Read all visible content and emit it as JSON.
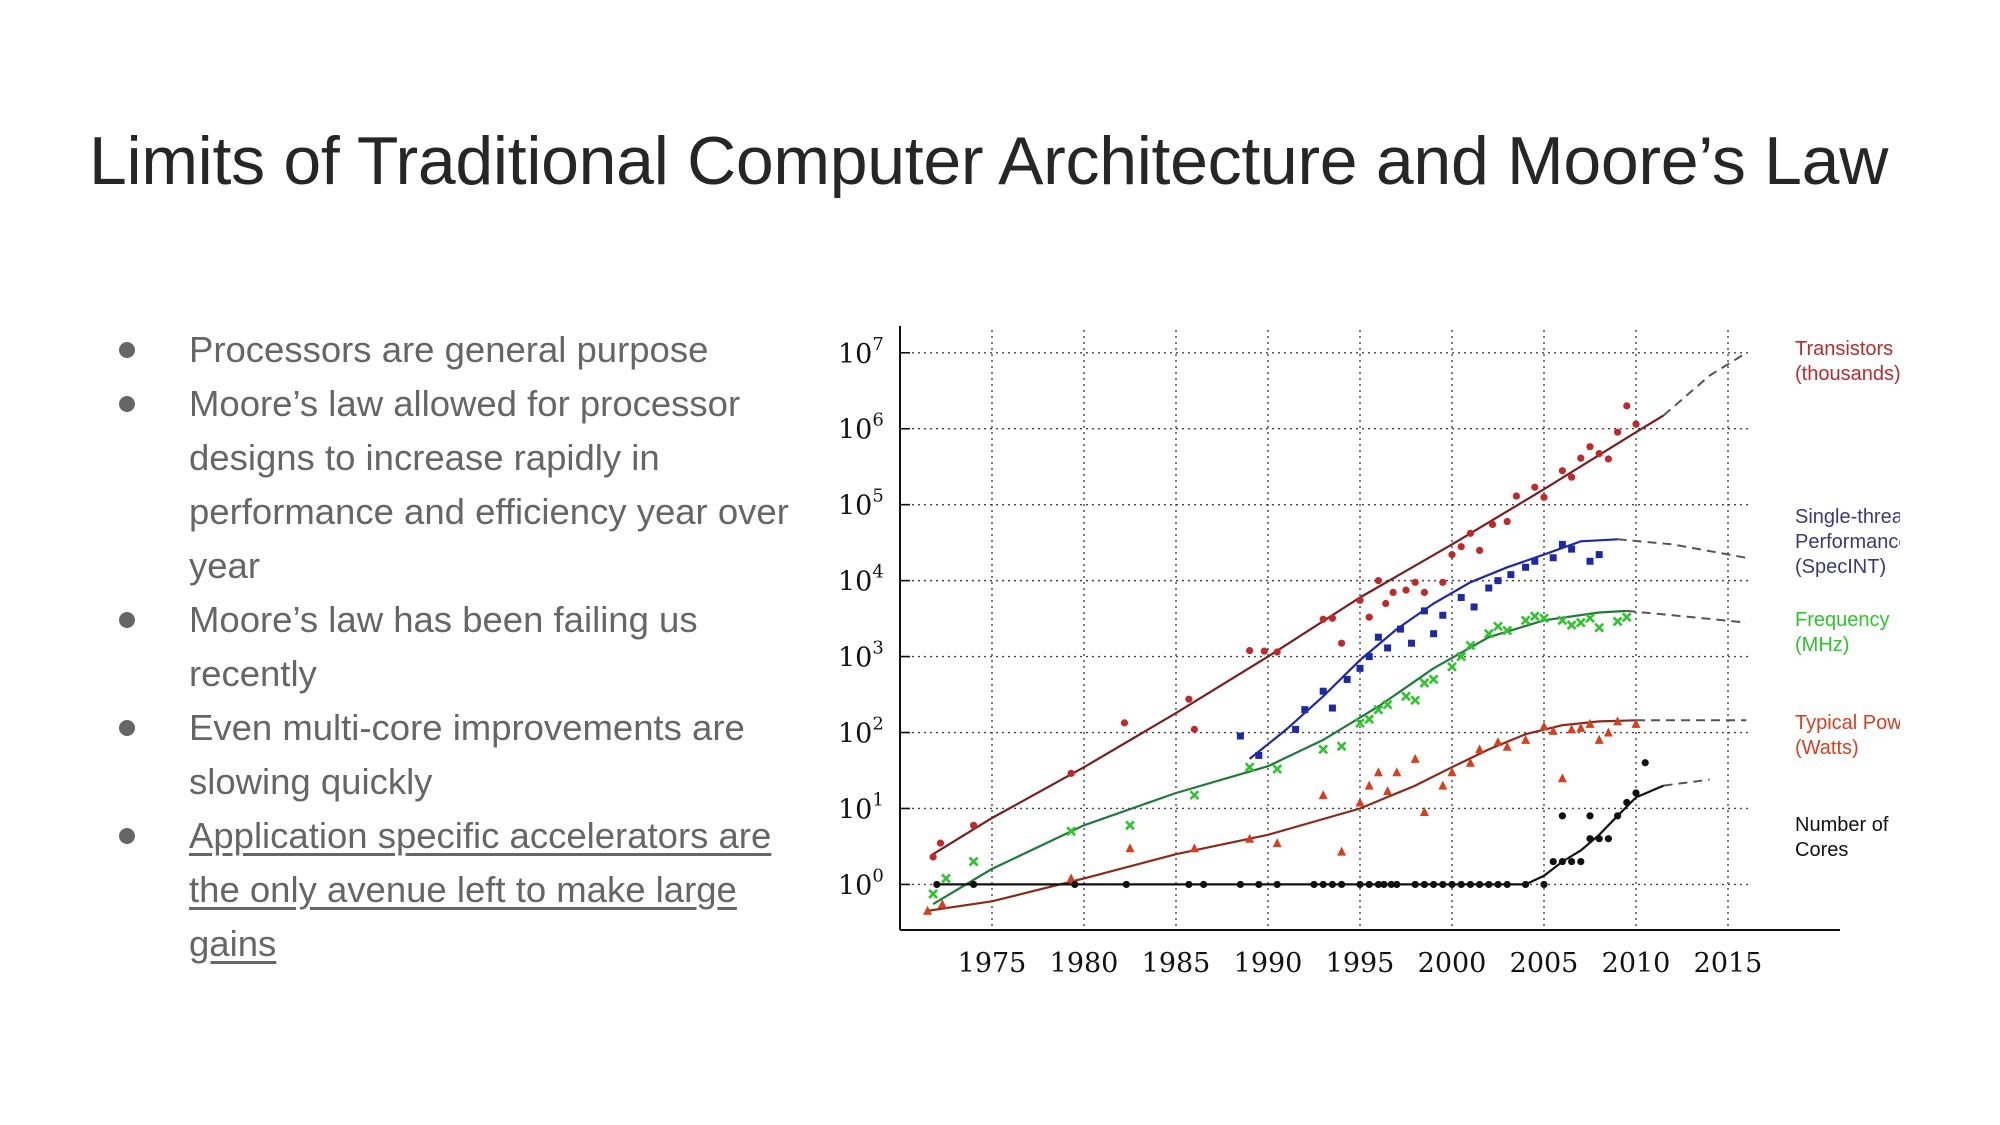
{
  "slide": {
    "title": "Limits of Traditional Computer Architecture and Moore’s Law",
    "bullets": [
      {
        "text": "Processors are general purpose",
        "link": false
      },
      {
        "text": "Moore’s law allowed for processor designs to increase rapidly in performance and efficiency year over year",
        "link": false
      },
      {
        "text": "Moore’s law has been failing us recently",
        "link": false
      },
      {
        "text": "Even multi-core improvements are slowing quickly",
        "link": false
      },
      {
        "text": "Application specific accelerators are the only avenue left to make large gains",
        "link": true
      }
    ]
  },
  "chart_data": {
    "type": "scatter",
    "title": "",
    "xlabel": "",
    "ylabel": "",
    "xlim": [
      1970,
      2020
    ],
    "ylim_log10": [
      -0.6,
      7.3
    ],
    "y_scale": "log",
    "x_ticks": [
      1975,
      1980,
      1985,
      1990,
      1995,
      2000,
      2005,
      2010,
      2015
    ],
    "y_ticks": [
      {
        "base": "10",
        "exp": "0"
      },
      {
        "base": "10",
        "exp": "1"
      },
      {
        "base": "10",
        "exp": "2"
      },
      {
        "base": "10",
        "exp": "3"
      },
      {
        "base": "10",
        "exp": "4"
      },
      {
        "base": "10",
        "exp": "5"
      },
      {
        "base": "10",
        "exp": "6"
      },
      {
        "base": "10",
        "exp": "7"
      }
    ],
    "grid": true,
    "legend_placement": "right",
    "series": [
      {
        "name": "Transistors (thousands)",
        "label_lines": [
          "Transistors",
          "(thousands)"
        ],
        "color": "#c0282a",
        "marker": "dot",
        "points": [
          [
            1971.8,
            2.3
          ],
          [
            1972.2,
            3.5
          ],
          [
            1974,
            6
          ],
          [
            1979.3,
            29
          ],
          [
            1982.2,
            134
          ],
          [
            1985.7,
            275
          ],
          [
            1986,
            110
          ],
          [
            1989,
            1200
          ],
          [
            1989.8,
            1180
          ],
          [
            1990.5,
            1150
          ],
          [
            1993,
            3100
          ],
          [
            1993.5,
            3200
          ],
          [
            1994,
            1500
          ],
          [
            1995,
            5500
          ],
          [
            1995.5,
            3300
          ],
          [
            1996,
            10000
          ],
          [
            1996.4,
            5000
          ],
          [
            1996.8,
            7000
          ],
          [
            1997.5,
            7500
          ],
          [
            1998,
            9500
          ],
          [
            1998.5,
            7000
          ],
          [
            1999.5,
            9500
          ],
          [
            2000,
            22000
          ],
          [
            2000.5,
            28000
          ],
          [
            2001,
            42000
          ],
          [
            2001.5,
            25000
          ],
          [
            2002.2,
            55000
          ],
          [
            2003,
            60000
          ],
          [
            2003.5,
            130000
          ],
          [
            2004.5,
            170000
          ],
          [
            2005,
            125000
          ],
          [
            2006,
            280000
          ],
          [
            2006.5,
            230000
          ],
          [
            2007,
            410000
          ],
          [
            2007.5,
            580000
          ],
          [
            2008,
            470000
          ],
          [
            2008.5,
            400000
          ],
          [
            2009,
            900000
          ],
          [
            2009.5,
            2000000
          ],
          [
            2010,
            1150000
          ]
        ],
        "trend": [
          [
            1971.8,
            2.5
          ],
          [
            1975,
            7.5
          ],
          [
            1980,
            35
          ],
          [
            1985,
            180
          ],
          [
            1990,
            1000
          ],
          [
            1995,
            6000
          ],
          [
            2000,
            30000
          ],
          [
            2005,
            160000
          ],
          [
            2010,
            900000
          ],
          [
            2011.5,
            1500000
          ]
        ],
        "projection": [
          [
            2011.5,
            1500000
          ],
          [
            2014,
            5000000
          ],
          [
            2016,
            10000000
          ]
        ]
      },
      {
        "name": "Single-thread Performance (SpecINT)",
        "label_lines": [
          "Single-thread",
          "Performance",
          "(SpecINT)"
        ],
        "color": "#1c2aa8",
        "marker": "square",
        "points": [
          [
            1988.5,
            90
          ],
          [
            1989.5,
            50
          ],
          [
            1991.5,
            110
          ],
          [
            1992,
            200
          ],
          [
            1993,
            350
          ],
          [
            1993.5,
            210
          ],
          [
            1994.3,
            500
          ],
          [
            1995,
            700
          ],
          [
            1995.5,
            1000
          ],
          [
            1996,
            1800
          ],
          [
            1996.5,
            1300
          ],
          [
            1997.2,
            2300
          ],
          [
            1997.8,
            1500
          ],
          [
            1998.5,
            4000
          ],
          [
            1999,
            2000
          ],
          [
            1999.5,
            3500
          ],
          [
            2000.5,
            6000
          ],
          [
            2001.2,
            4500
          ],
          [
            2002,
            8000
          ],
          [
            2002.5,
            10000
          ],
          [
            2003.2,
            12000
          ],
          [
            2004,
            15000
          ],
          [
            2004.5,
            18000
          ],
          [
            2005.5,
            20000
          ],
          [
            2006,
            30000
          ],
          [
            2006.5,
            26000
          ],
          [
            2007.5,
            18000
          ],
          [
            2008,
            22000
          ]
        ],
        "trend": [
          [
            1989,
            45
          ],
          [
            1991,
            110
          ],
          [
            1993,
            300
          ],
          [
            1995,
            900
          ],
          [
            1997,
            2300
          ],
          [
            1999,
            5000
          ],
          [
            2001,
            9500
          ],
          [
            2003,
            15000
          ],
          [
            2005,
            22000
          ],
          [
            2007,
            33000
          ],
          [
            2009,
            35000
          ]
        ],
        "projection": [
          [
            2009,
            35000
          ],
          [
            2012,
            30000
          ],
          [
            2016,
            20000
          ]
        ]
      },
      {
        "name": "Frequency (MHz)",
        "label_lines": [
          "Frequency",
          "(MHz)"
        ],
        "color": "#2ec42e",
        "marker": "cross",
        "points": [
          [
            1971.8,
            0.75
          ],
          [
            1972.5,
            1.2
          ],
          [
            1974,
            2
          ],
          [
            1979.3,
            5
          ],
          [
            1982.5,
            6
          ],
          [
            1986,
            15
          ],
          [
            1989,
            35
          ],
          [
            1990.5,
            33
          ],
          [
            1993,
            60
          ],
          [
            1994,
            66
          ],
          [
            1995,
            133
          ],
          [
            1995.5,
            150
          ],
          [
            1996,
            200
          ],
          [
            1996.5,
            233
          ],
          [
            1997.5,
            300
          ],
          [
            1998,
            266
          ],
          [
            1998.5,
            450
          ],
          [
            1999,
            500
          ],
          [
            2000,
            733
          ],
          [
            2000.5,
            1000
          ],
          [
            2001,
            1400
          ],
          [
            2002,
            2000
          ],
          [
            2002.5,
            2500
          ],
          [
            2003,
            2200
          ],
          [
            2004,
            3000
          ],
          [
            2004.5,
            3400
          ],
          [
            2005,
            3200
          ],
          [
            2006,
            3000
          ],
          [
            2006.5,
            2600
          ],
          [
            2007,
            2800
          ],
          [
            2007.5,
            3200
          ],
          [
            2008,
            2400
          ],
          [
            2009,
            2900
          ],
          [
            2009.5,
            3300
          ]
        ],
        "trend": [
          [
            1971.8,
            0.55
          ],
          [
            1975,
            1.6
          ],
          [
            1980,
            6
          ],
          [
            1985,
            16
          ],
          [
            1990,
            36
          ],
          [
            1993,
            80
          ],
          [
            1996,
            220
          ],
          [
            1999,
            700
          ],
          [
            2002,
            1800
          ],
          [
            2005,
            3000
          ],
          [
            2008,
            3800
          ],
          [
            2009.5,
            4000
          ]
        ],
        "projection": [
          [
            2009.5,
            4000
          ],
          [
            2012,
            3500
          ],
          [
            2016,
            2800
          ]
        ]
      },
      {
        "name": "Typical Power (Watts)",
        "label_lines": [
          "Typical Power",
          "(Watts)"
        ],
        "color": "#d6401e",
        "marker": "triangle",
        "points": [
          [
            1971.5,
            0.45
          ],
          [
            1972.3,
            0.55
          ],
          [
            1979.3,
            1.2
          ],
          [
            1982.5,
            3
          ],
          [
            1986,
            3
          ],
          [
            1989,
            4
          ],
          [
            1990.5,
            3.5
          ],
          [
            1993,
            15
          ],
          [
            1994,
            2.7
          ],
          [
            1995,
            12
          ],
          [
            1995.5,
            20
          ],
          [
            1996,
            30
          ],
          [
            1996.5,
            17
          ],
          [
            1997,
            30
          ],
          [
            1998,
            45
          ],
          [
            1998.5,
            9
          ],
          [
            1999.5,
            20
          ],
          [
            2000,
            30
          ],
          [
            2001,
            40
          ],
          [
            2001.5,
            60
          ],
          [
            2002.5,
            75
          ],
          [
            2003,
            65
          ],
          [
            2004,
            80
          ],
          [
            2005,
            120
          ],
          [
            2005.5,
            105
          ],
          [
            2006,
            25
          ],
          [
            2006.5,
            110
          ],
          [
            2007,
            115
          ],
          [
            2007.5,
            130
          ],
          [
            2008,
            80
          ],
          [
            2008.5,
            100
          ],
          [
            2009,
            140
          ],
          [
            2010,
            130
          ]
        ],
        "trend": [
          [
            1971.5,
            0.45
          ],
          [
            1975,
            0.6
          ],
          [
            1980,
            1.2
          ],
          [
            1985,
            2.5
          ],
          [
            1990,
            4.5
          ],
          [
            1995,
            10
          ],
          [
            1998,
            20
          ],
          [
            2000,
            35
          ],
          [
            2002,
            60
          ],
          [
            2004,
            95
          ],
          [
            2006,
            125
          ],
          [
            2008,
            140
          ],
          [
            2010,
            145
          ]
        ],
        "projection": [
          [
            2010,
            145
          ],
          [
            2016,
            145
          ]
        ]
      },
      {
        "name": "Number of Cores",
        "label_lines": [
          "Number of",
          "Cores"
        ],
        "color": "#111111",
        "marker": "dot",
        "points": [
          [
            1972,
            1
          ],
          [
            1974,
            1
          ],
          [
            1979.5,
            1
          ],
          [
            1982.3,
            1
          ],
          [
            1985.7,
            1
          ],
          [
            1986.5,
            1
          ],
          [
            1988.5,
            1
          ],
          [
            1989.5,
            1
          ],
          [
            1990.5,
            1
          ],
          [
            1992.5,
            1
          ],
          [
            1993,
            1
          ],
          [
            1993.5,
            1
          ],
          [
            1994,
            1
          ],
          [
            1995,
            1
          ],
          [
            1995.5,
            1
          ],
          [
            1996,
            1
          ],
          [
            1996.3,
            1
          ],
          [
            1996.7,
            1
          ],
          [
            1997,
            1
          ],
          [
            1998,
            1
          ],
          [
            1998.5,
            1
          ],
          [
            1999,
            1
          ],
          [
            1999.5,
            1
          ],
          [
            2000,
            1
          ],
          [
            2000.5,
            1
          ],
          [
            2001,
            1
          ],
          [
            2001.5,
            1
          ],
          [
            2002,
            1
          ],
          [
            2002.5,
            1
          ],
          [
            2003,
            1
          ],
          [
            2004,
            1
          ],
          [
            2005,
            1
          ],
          [
            2005.5,
            2
          ],
          [
            2006,
            2
          ],
          [
            2006.5,
            2
          ],
          [
            2007,
            2
          ],
          [
            2007.5,
            4
          ],
          [
            2008,
            4
          ],
          [
            2008.5,
            4
          ],
          [
            2009,
            8
          ],
          [
            2009.5,
            12
          ],
          [
            2010,
            16
          ],
          [
            2010.5,
            40
          ],
          [
            2006,
            8
          ],
          [
            2007.5,
            8
          ]
        ],
        "trend": [
          [
            1972,
            1
          ],
          [
            1980,
            1
          ],
          [
            1990,
            1
          ],
          [
            2000,
            1
          ],
          [
            2004,
            1
          ],
          [
            2005,
            1.3
          ],
          [
            2006,
            2
          ],
          [
            2007,
            2.8
          ],
          [
            2008,
            4.5
          ],
          [
            2009,
            8
          ],
          [
            2010,
            14
          ],
          [
            2011.5,
            20
          ]
        ],
        "projection": [
          [
            2011.5,
            20
          ],
          [
            2014,
            24
          ]
        ]
      }
    ]
  }
}
